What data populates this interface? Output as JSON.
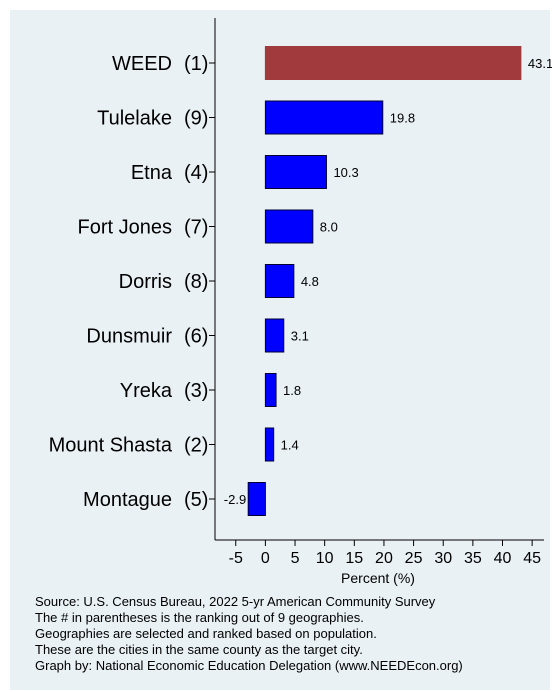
{
  "chart_data": {
    "type": "bar",
    "orientation": "horizontal",
    "categories": [
      "WEED",
      "Tulelake",
      "Etna",
      "Fort Jones",
      "Dorris",
      "Dunsmuir",
      "Yreka",
      "Mount Shasta",
      "Montague"
    ],
    "ranks": [
      "(1)",
      "(9)",
      "(4)",
      "(7)",
      "(8)",
      "(6)",
      "(3)",
      "(2)",
      "(5)"
    ],
    "values": [
      43.1,
      19.8,
      10.3,
      8.0,
      4.8,
      3.1,
      1.8,
      1.4,
      -2.9
    ],
    "value_labels": [
      "43.1",
      "19.8",
      "10.3",
      "8.0",
      "4.8",
      "3.1",
      "1.8",
      "1.4",
      "-2.9"
    ],
    "highlight_index": 0,
    "xlabel": "Percent (%)",
    "xlim": [
      -8.5,
      47
    ],
    "xticks": [
      -5,
      0,
      5,
      10,
      15,
      20,
      25,
      30,
      35,
      40,
      45
    ],
    "colors": {
      "highlight": "#a03a3c",
      "bar": "#0000ff",
      "background": "#e9f1f5"
    }
  },
  "footer": {
    "line1": "Source: U.S. Census Bureau, 2022 5-yr American Community Survey",
    "line2": "The # in parentheses is the ranking out of 9 geographies.",
    "line3": "Geographies are selected and ranked based on population.",
    "line4": "These are the cities in the same county as the target city.",
    "line5": "Graph by: National Economic Education Delegation (www.NEEDEcon.org)"
  }
}
